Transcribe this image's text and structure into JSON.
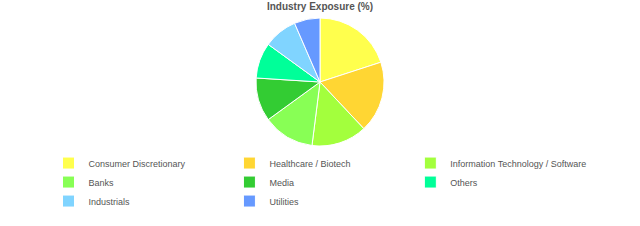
{
  "chart_data": {
    "type": "pie",
    "title": "Industry Exposure (%)",
    "categories": [
      "Consumer Discretionary",
      "Healthcare / Biotech",
      "Information Technology / Software",
      "Banks",
      "Media",
      "Others",
      "Industrials",
      "Utilities"
    ],
    "values": [
      20,
      18,
      14,
      13,
      11,
      9,
      8.5,
      6.5
    ],
    "colors": [
      "#ffff4d",
      "#ffd633",
      "#a3ff3d",
      "#88ff55",
      "#33cc33",
      "#00ff99",
      "#80d4ff",
      "#6699ff"
    ],
    "legend": "bottom"
  }
}
